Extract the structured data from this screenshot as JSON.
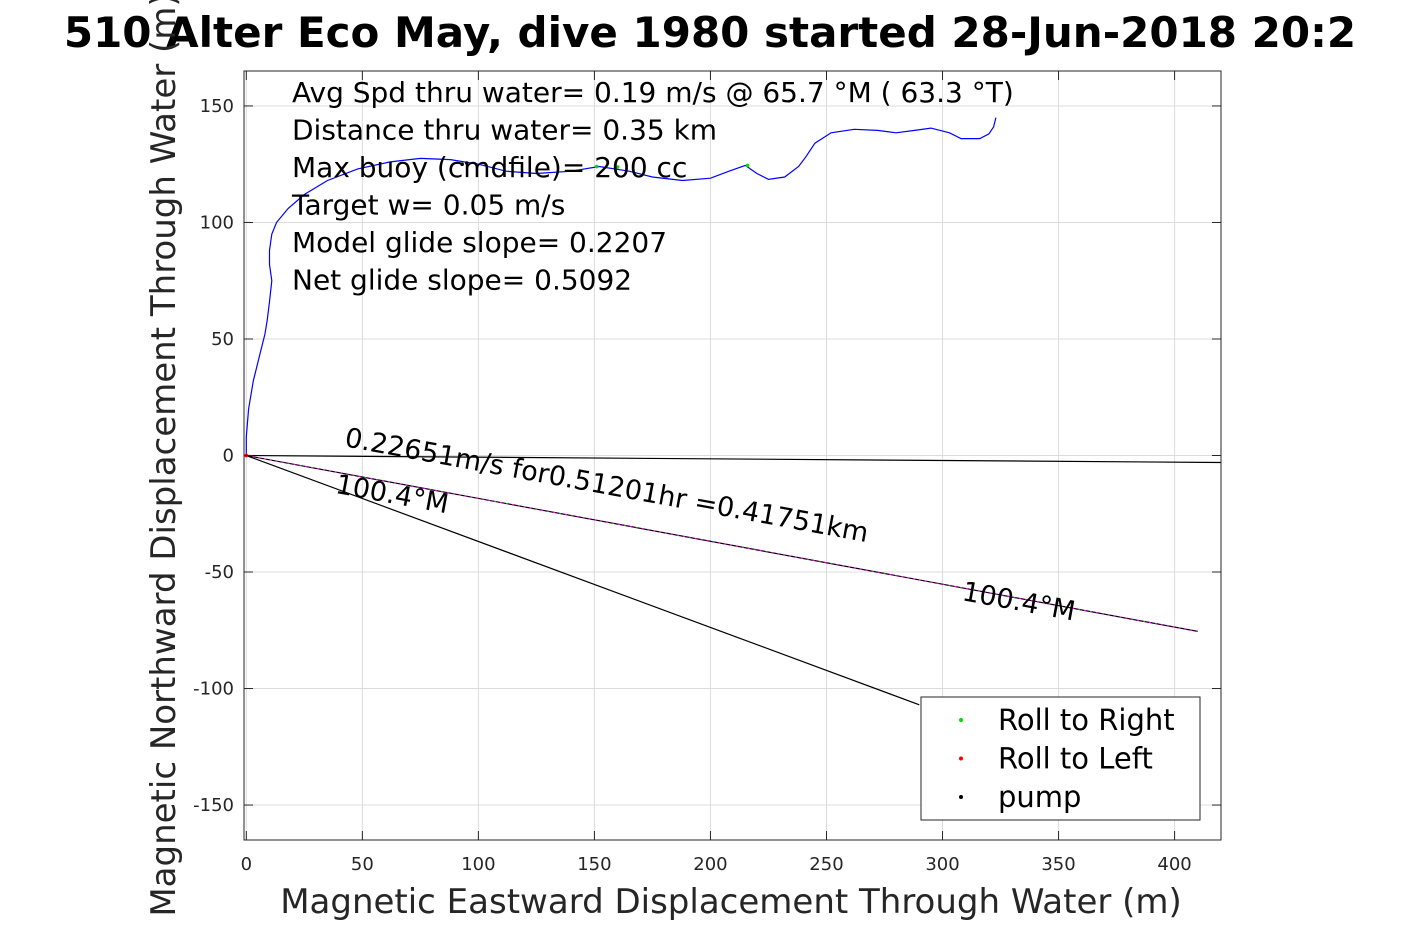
{
  "chart_data": {
    "type": "line",
    "title": "510 Alter Eco May, dive 1980 started 28-Jun-2018 20:2",
    "xlabel": "Magnetic Eastward Displacement Through Water (m)",
    "ylabel": "Magnetic Northward Displacement Through Water (m)",
    "xlim": [
      -1,
      420
    ],
    "ylim": [
      -165,
      165
    ],
    "xticks": [
      0,
      50,
      100,
      150,
      200,
      250,
      300,
      350,
      400
    ],
    "yticks": [
      -150,
      -100,
      -50,
      0,
      50,
      100,
      150
    ],
    "grid": true,
    "annotations": [
      "Avg Spd thru water=  0.19 m/s @  65.7 °M ( 63.3 °T)",
      "Distance thru water=  0.35 km",
      "Max buoy (cmdfile)= 200 cc",
      "Target w= 0.05 m/s",
      "Model glide slope= 0.2207",
      "Net glide slope= 0.5092"
    ],
    "line_labels": [
      {
        "text": "0.22651m/s for0.51201hr =0.41751km",
        "x": 42,
        "y": 4,
        "rotation_deg": 10.4
      },
      {
        "text": "100.4°M",
        "x": 308,
        "y": -62,
        "rotation_deg": 10.4
      },
      {
        "text": "100.4°M",
        "x": 38,
        "y": -16,
        "rotation_deg": 10.4
      }
    ],
    "series": [
      {
        "role": "track",
        "color": "#0000ff",
        "points": [
          [
            0,
            0
          ],
          [
            0,
            8
          ],
          [
            1,
            20
          ],
          [
            3,
            32
          ],
          [
            6,
            44
          ],
          [
            8,
            52
          ],
          [
            9,
            58
          ],
          [
            10,
            66
          ],
          [
            11,
            75
          ],
          [
            10,
            82
          ],
          [
            10,
            88
          ],
          [
            11,
            95
          ],
          [
            13,
            100
          ],
          [
            18,
            106
          ],
          [
            25,
            112
          ],
          [
            35,
            118
          ],
          [
            48,
            123
          ],
          [
            62,
            126
          ],
          [
            75,
            127.5
          ],
          [
            88,
            127
          ],
          [
            100,
            125
          ],
          [
            112,
            122
          ],
          [
            125,
            121
          ],
          [
            140,
            122
          ],
          [
            152,
            124
          ],
          [
            165,
            122
          ],
          [
            175,
            119.5
          ],
          [
            188,
            118
          ],
          [
            200,
            119
          ],
          [
            208,
            122
          ],
          [
            215,
            124.5
          ],
          [
            220,
            121
          ],
          [
            225,
            118.5
          ],
          [
            232,
            119.5
          ],
          [
            238,
            124
          ],
          [
            241,
            128
          ],
          [
            245,
            134
          ],
          [
            252,
            138.5
          ],
          [
            262,
            140
          ],
          [
            272,
            139.5
          ],
          [
            280,
            138.5
          ],
          [
            288,
            139.5
          ],
          [
            295,
            140.5
          ],
          [
            303,
            138.5
          ],
          [
            308,
            136
          ],
          [
            316,
            136
          ],
          [
            320,
            138
          ],
          [
            322,
            141
          ],
          [
            323,
            145
          ]
        ]
      },
      {
        "role": "mean-current-line",
        "color": "#000000",
        "points": [
          [
            0,
            0
          ],
          [
            420,
            -3
          ]
        ]
      },
      {
        "role": "heading-line-long",
        "color": "#000000",
        "points": [
          [
            0,
            0
          ],
          [
            410,
            -75.5
          ]
        ]
      },
      {
        "role": "heading-line-short",
        "color": "#000000",
        "points": [
          [
            0,
            0
          ],
          [
            290,
            -107
          ]
        ]
      },
      {
        "role": "pump-markers",
        "color": "#000000",
        "points": [
          [
            0,
            0
          ],
          [
            93,
            125
          ],
          [
            95,
            125.5
          ]
        ]
      },
      {
        "role": "roll-right-markers",
        "color": "#00dd00",
        "points": [
          [
            0,
            0
          ],
          [
            151,
            124
          ],
          [
            160,
            123.8
          ],
          [
            216,
            124.5
          ]
        ]
      },
      {
        "role": "roll-left-markers",
        "color": "#ff0000",
        "points": [
          [
            0,
            0
          ]
        ]
      }
    ],
    "legend": {
      "placement": "bottom-right",
      "items": [
        {
          "label": "Roll to Right",
          "color": "#00dd00"
        },
        {
          "label": "Roll to Left",
          "color": "#ff0000"
        },
        {
          "label": "pump",
          "color": "#000000"
        }
      ]
    }
  }
}
